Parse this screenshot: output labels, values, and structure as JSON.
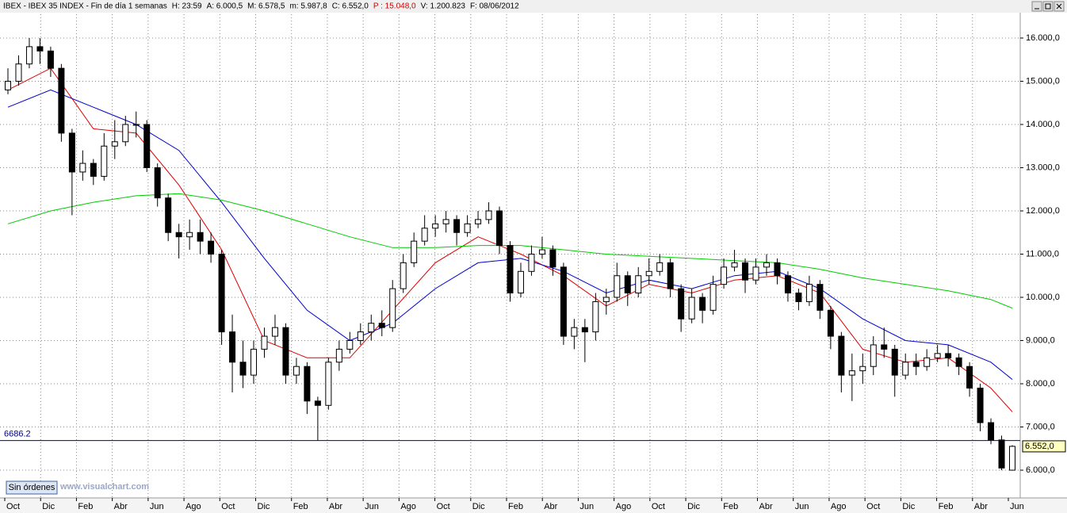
{
  "chart_data": {
    "type": "candlestick",
    "header": [
      "IBEX - IBEX 35 INDEX - Fin de día 1 semanas",
      "H: 23:59",
      "A: 6.000,5",
      "M: 6.578,5",
      "m: 5.987,8",
      "C: 6.552,0",
      "P : 15.048,0",
      "V: 1.200.823",
      "F: 08/06/2012"
    ],
    "header_colors": [
      "#000000",
      "#000000",
      "#000000",
      "#000000",
      "#000000",
      "#000000",
      "#cc0000",
      "#000000",
      "#000000"
    ],
    "month_labels": [
      "Oct",
      "Dic",
      "Feb",
      "Abr",
      "Jun",
      "Ago",
      "Oct",
      "Dic",
      "Feb",
      "Abr",
      "Jun",
      "Ago",
      "Oct",
      "Dic",
      "Feb",
      "Abr",
      "Jun",
      "Ago",
      "Oct",
      "Dic",
      "Feb",
      "Abr",
      "Jun",
      "Ago",
      "Oct",
      "Dic",
      "Feb",
      "Abr",
      "Jun"
    ],
    "open": [
      14800,
      15000,
      15400,
      15800,
      15700,
      15300,
      13800,
      12900,
      13100,
      12800,
      13500,
      13600,
      14000,
      14000,
      13000,
      12300,
      11500,
      11400,
      11500,
      11300,
      11000,
      9200,
      8500,
      8200,
      8800,
      9100,
      9300,
      8200,
      8400,
      7600,
      7500,
      8500,
      8800,
      9000,
      9200,
      9400,
      9300,
      10200,
      10800,
      11300,
      11600,
      11700,
      11800,
      11500,
      11700,
      11800,
      12000,
      11200,
      10100,
      10600,
      11000,
      11100,
      10700,
      9100,
      9300,
      9200,
      9900,
      10000,
      10500,
      10100,
      10500,
      10600,
      10800,
      10200,
      9500,
      10000,
      9700,
      10300,
      10700,
      10800,
      10400,
      10700,
      10800,
      10500,
      10100,
      9900,
      10300,
      9700,
      9100,
      8200,
      8300,
      8400,
      8900,
      8800,
      8200,
      8500,
      8400,
      8600,
      8700,
      8600,
      8400,
      7900,
      7100,
      6700,
      6000.5
    ],
    "high": [
      15300,
      15600,
      16000,
      16000,
      15800,
      15400,
      13900,
      13400,
      13200,
      13800,
      14100,
      14200,
      14300,
      14100,
      13100,
      12400,
      11700,
      11800,
      11800,
      11500,
      11100,
      9600,
      9000,
      9000,
      9300,
      9600,
      9400,
      8600,
      8500,
      7700,
      8600,
      9000,
      9200,
      9400,
      9600,
      9700,
      10400,
      11000,
      11500,
      11900,
      11900,
      12000,
      11900,
      11900,
      12000,
      12200,
      12100,
      11300,
      10800,
      11200,
      11400,
      11200,
      10800,
      9500,
      9500,
      10100,
      10200,
      10800,
      10600,
      10700,
      10900,
      11000,
      10900,
      10300,
      10200,
      10100,
      10500,
      10900,
      11100,
      10900,
      10900,
      11000,
      10900,
      10600,
      10200,
      10500,
      10400,
      9800,
      9200,
      8700,
      8700,
      9100,
      9300,
      8900,
      8700,
      8700,
      8800,
      8900,
      8900,
      8700,
      8500,
      8000,
      7200,
      6800,
      6578.5
    ],
    "low": [
      14700,
      14900,
      15300,
      15400,
      15100,
      13600,
      11900,
      12700,
      12600,
      12700,
      13200,
      13500,
      13700,
      12900,
      12100,
      11300,
      10900,
      11100,
      11000,
      10800,
      8900,
      7800,
      7900,
      8000,
      8600,
      8900,
      8000,
      8000,
      7300,
      6686.2,
      7400,
      8300,
      8700,
      8900,
      9000,
      9100,
      9200,
      10100,
      10700,
      11200,
      11400,
      11500,
      11200,
      11400,
      11600,
      11700,
      11000,
      9900,
      10000,
      10500,
      10900,
      10500,
      8900,
      8800,
      8500,
      9000,
      9600,
      9900,
      9800,
      10000,
      10300,
      10500,
      10000,
      9200,
      9400,
      9400,
      9600,
      10200,
      10600,
      10100,
      10300,
      10500,
      10300,
      9900,
      9700,
      9800,
      9500,
      8800,
      7800,
      7600,
      8000,
      8200,
      8600,
      7700,
      8100,
      8200,
      8300,
      8500,
      8400,
      8200,
      7700,
      6900,
      6600,
      6000,
      5987.8
    ],
    "close": [
      15000,
      15400,
      15800,
      15700,
      15300,
      13800,
      12900,
      13100,
      12800,
      13500,
      13600,
      14000,
      14000,
      13000,
      12300,
      11500,
      11400,
      11500,
      11300,
      11000,
      9200,
      8500,
      8200,
      8800,
      9100,
      9300,
      8200,
      8400,
      7600,
      7500,
      8500,
      8800,
      9000,
      9200,
      9400,
      9300,
      10200,
      10800,
      11300,
      11600,
      11700,
      11800,
      11500,
      11700,
      11800,
      12000,
      11200,
      10100,
      10600,
      11000,
      11100,
      10700,
      9100,
      9300,
      9200,
      9900,
      10000,
      10500,
      10100,
      10500,
      10600,
      10800,
      10200,
      9500,
      10000,
      9700,
      10300,
      10700,
      10800,
      10400,
      10700,
      10800,
      10500,
      10100,
      9900,
      10300,
      9700,
      9100,
      8200,
      8300,
      8400,
      8900,
      8800,
      8200,
      8500,
      8400,
      8600,
      8700,
      8600,
      8400,
      7900,
      7100,
      6700,
      6050,
      6552
    ],
    "moving_averages": [
      {
        "color": "#dd0000",
        "x": [
          0,
          4,
          8,
          12,
          16,
          20,
          24,
          28,
          32,
          36,
          40,
          44,
          48,
          52,
          56,
          60,
          64,
          68,
          72,
          76,
          80,
          84,
          88,
          92,
          94
        ],
        "values": [
          14800,
          15300,
          13900,
          13800,
          12600,
          11100,
          9000,
          8600,
          8600,
          9700,
          10800,
          11400,
          11000,
          10500,
          9800,
          10300,
          10100,
          10400,
          10500,
          10100,
          8800,
          8500,
          8600,
          7900,
          7350
        ]
      },
      {
        "color": "#0000cc",
        "x": [
          0,
          4,
          8,
          12,
          16,
          20,
          24,
          28,
          32,
          36,
          40,
          44,
          48,
          52,
          56,
          60,
          64,
          68,
          72,
          76,
          80,
          84,
          88,
          92,
          94
        ],
        "values": [
          14400,
          14800,
          14400,
          14000,
          13400,
          12200,
          10900,
          9700,
          9000,
          9400,
          10200,
          10800,
          10900,
          10600,
          10100,
          10400,
          10200,
          10500,
          10600,
          10200,
          9500,
          9000,
          8900,
          8500,
          8100
        ]
      },
      {
        "color": "#00cc00",
        "x": [
          0,
          4,
          8,
          12,
          16,
          20,
          24,
          28,
          32,
          36,
          40,
          44,
          48,
          52,
          56,
          60,
          64,
          68,
          72,
          76,
          80,
          84,
          88,
          92,
          94
        ],
        "values": [
          11700,
          12000,
          12200,
          12350,
          12400,
          12250,
          12000,
          11700,
          11400,
          11150,
          11150,
          11200,
          11200,
          11100,
          11000,
          10950,
          10900,
          10850,
          10800,
          10650,
          10450,
          10300,
          10150,
          9950,
          9750
        ]
      }
    ],
    "hline": {
      "value": 6686.2,
      "label": "6686.2",
      "color": "#000080"
    },
    "last_price": {
      "value": 6552,
      "label": "6.552,0"
    },
    "ylim": [
      5358,
      16550
    ],
    "yticks": [
      {
        "value": 6000,
        "label": "6.000,0"
      },
      {
        "value": 7000,
        "label": "7.000,0"
      },
      {
        "value": 8000,
        "label": "8.000,0"
      },
      {
        "value": 9000,
        "label": "9.000,0"
      },
      {
        "value": 10000,
        "label": "10.000,0"
      },
      {
        "value": 11000,
        "label": "11.000,0"
      },
      {
        "value": 12000,
        "label": "12.000,0"
      },
      {
        "value": 13000,
        "label": "13.000,0"
      },
      {
        "value": 14000,
        "label": "14.000,0"
      },
      {
        "value": 15000,
        "label": "15.000,0"
      },
      {
        "value": 16000,
        "label": "16.000,0"
      }
    ],
    "grid": true,
    "button": "Sin órdenes",
    "watermark": "www.visualchart.com"
  }
}
